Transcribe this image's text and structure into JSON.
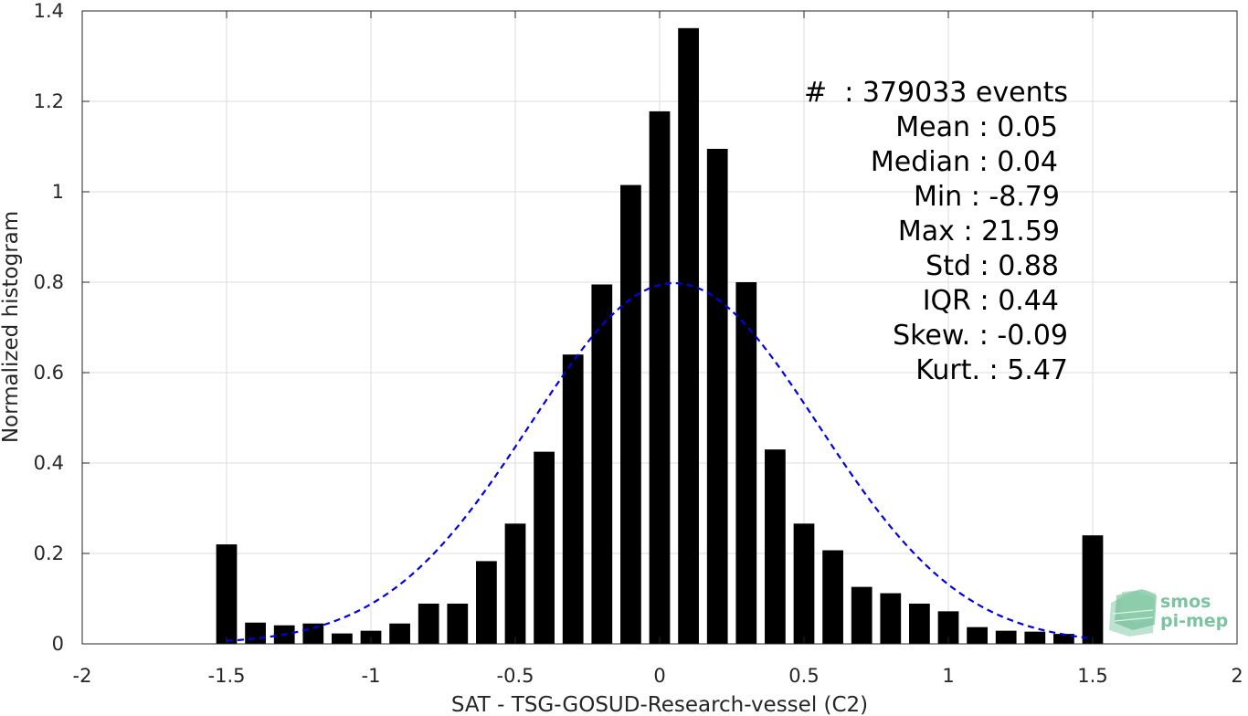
{
  "chart_data": {
    "type": "bar",
    "xlabel": "SAT - TSG-GOSUD-Research-vessel (C2)",
    "ylabel": "Normalized histogram",
    "xlim": [
      -2,
      2
    ],
    "ylim": [
      0,
      1.4
    ],
    "x_ticks": [
      "-2",
      "-1.5",
      "-1",
      "-0.5",
      "0",
      "0.5",
      "1",
      "1.5",
      "2"
    ],
    "y_ticks": [
      "0",
      "0.2",
      "0.4",
      "0.6",
      "0.8",
      "1",
      "1.2",
      "1.4"
    ],
    "grid": true,
    "bin_centers": [
      -1.5,
      -1.4,
      -1.3,
      -1.2,
      -1.1,
      -1.0,
      -0.9,
      -0.8,
      -0.7,
      -0.6,
      -0.5,
      -0.4,
      -0.3,
      -0.2,
      -0.1,
      0.0,
      0.1,
      0.2,
      0.3,
      0.4,
      0.5,
      0.6,
      0.7,
      0.8,
      0.9,
      1.0,
      1.1,
      1.2,
      1.3,
      1.4,
      1.5
    ],
    "values": [
      0.22,
      0.047,
      0.041,
      0.045,
      0.023,
      0.029,
      0.045,
      0.089,
      0.089,
      0.183,
      0.266,
      0.425,
      0.64,
      0.795,
      1.015,
      1.178,
      1.362,
      1.095,
      0.8,
      0.43,
      0.266,
      0.207,
      0.126,
      0.112,
      0.089,
      0.072,
      0.037,
      0.029,
      0.027,
      0.022,
      0.24
    ],
    "bar_color": "#000000",
    "fit": {
      "type": "normal",
      "mean": 0.05,
      "std": 0.5,
      "style": "dashed",
      "color": "#0000e6",
      "x_range": [
        -1.5,
        1.5
      ]
    },
    "annotations": [
      "#  : 379033 events",
      "Mean : 0.05",
      "Median : 0.04",
      "Min : -8.79",
      "Max : 21.59",
      "Std : 0.88",
      "IQR : 0.44",
      "Skew. : -0.09",
      "Kurt. : 5.47"
    ]
  },
  "logo": {
    "line1": "smos",
    "line2": "pi-mep",
    "color": "#7cc3a0"
  }
}
